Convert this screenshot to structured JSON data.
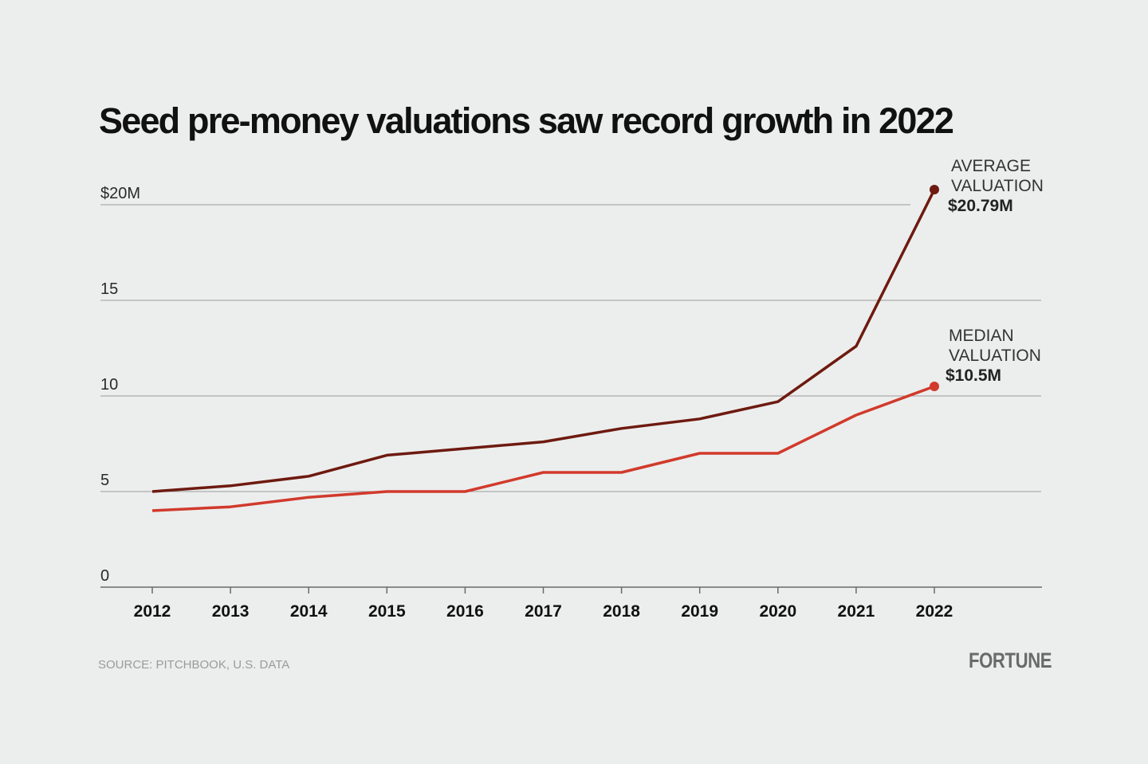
{
  "chart_data": {
    "type": "line",
    "title": "Seed pre-money valuations saw record growth in 2022",
    "x": [
      2012,
      2013,
      2014,
      2015,
      2016,
      2017,
      2018,
      2019,
      2020,
      2021,
      2022
    ],
    "x_tick_labels": [
      "2012",
      "2013",
      "2014",
      "2015",
      "2016",
      "2017",
      "2018",
      "2019",
      "2020",
      "2021",
      "2022"
    ],
    "y_tick_labels": [
      "0",
      "5",
      "10",
      "15",
      "$20M"
    ],
    "y_ticks": [
      0,
      5,
      10,
      15,
      20
    ],
    "ylim": [
      0,
      20.8
    ],
    "grid": "horizontal",
    "series": [
      {
        "name": "AVERAGE VALUATION",
        "label_line1": "AVERAGE",
        "label_line2": "VALUATION",
        "end_label": "$20.79M",
        "color": "#6e1a10",
        "values": [
          5.0,
          5.3,
          5.8,
          6.9,
          7.25,
          7.6,
          8.3,
          8.8,
          9.7,
          12.6,
          20.79
        ]
      },
      {
        "name": "MEDIAN VALUATION",
        "label_line1": "MEDIAN",
        "label_line2": "VALUATION",
        "end_label": "$10.5M",
        "color": "#d13a2c",
        "values": [
          4.0,
          4.2,
          4.7,
          5.0,
          5.0,
          6.0,
          6.0,
          7.0,
          7.0,
          9.0,
          10.5
        ]
      }
    ]
  },
  "source": "SOURCE: PITCHBOOK, U.S. DATA",
  "logo": "FORTUNE"
}
